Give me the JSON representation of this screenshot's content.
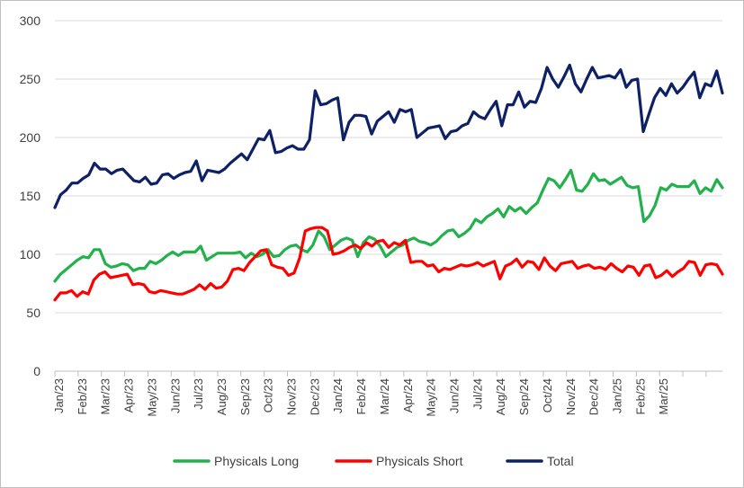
{
  "chart_data": {
    "type": "line",
    "title": "",
    "xlabel": "",
    "ylabel": "",
    "ylim": [
      0,
      300
    ],
    "yticks": [
      0,
      50,
      100,
      150,
      200,
      250,
      300
    ],
    "grid": "horizontal",
    "legend_position": "bottom",
    "month_labels": [
      "Jan/23",
      "Feb/23",
      "Mar/23",
      "Apr/23",
      "May/23",
      "Jun/23",
      "Jul/23",
      "Aug/23",
      "Sep/23",
      "Oct/23",
      "Nov/23",
      "Dec/23",
      "Jan/24",
      "Feb/24",
      "Mar/24",
      "Apr/24",
      "May/24",
      "Jun/24",
      "Jul/24",
      "Aug/24",
      "Sep/24",
      "Oct/24",
      "Nov/24",
      "Dec/24",
      "Jan/25",
      "Feb/25",
      "Mar/25"
    ],
    "series": [
      {
        "name": "Physicals Long",
        "color": "#22b14c",
        "values": [
          77,
          83,
          87,
          91,
          95,
          98,
          97,
          104,
          104,
          92,
          89,
          90,
          92,
          91,
          86,
          88,
          88,
          94,
          92,
          95,
          99,
          102,
          99,
          102,
          102,
          102,
          107,
          95,
          98,
          101,
          101,
          101,
          101,
          102,
          97,
          101,
          98,
          100,
          104,
          98,
          99,
          104,
          107,
          108,
          104,
          102,
          108,
          120,
          115,
          104,
          108,
          112,
          114,
          112,
          98,
          110,
          115,
          113,
          107,
          98,
          102,
          106,
          108,
          112,
          114,
          111,
          110,
          108,
          111,
          116,
          120,
          121,
          115,
          118,
          122,
          130,
          127,
          132,
          135,
          139,
          132,
          141,
          137,
          140,
          135,
          140,
          144,
          155,
          165,
          163,
          157,
          164,
          172,
          155,
          154,
          160,
          169,
          163,
          164,
          160,
          163,
          166,
          159,
          157,
          158,
          128,
          133,
          142,
          157,
          155,
          160,
          158,
          158,
          158,
          163,
          152,
          157,
          154,
          164,
          157
        ]
      },
      {
        "name": "Physicals Short",
        "color": "#ff0000",
        "values": [
          61,
          67,
          67,
          69,
          64,
          68,
          66,
          78,
          83,
          85,
          80,
          81,
          82,
          83,
          74,
          75,
          74,
          68,
          67,
          69,
          68,
          67,
          66,
          66,
          68,
          70,
          74,
          70,
          75,
          71,
          72,
          77,
          87,
          88,
          86,
          93,
          98,
          103,
          104,
          91,
          89,
          88,
          82,
          84,
          97,
          120,
          122,
          123,
          123,
          120,
          100,
          101,
          103,
          106,
          108,
          105,
          110,
          107,
          111,
          112,
          106,
          110,
          108,
          112,
          93,
          94,
          94,
          90,
          91,
          85,
          88,
          87,
          89,
          91,
          90,
          91,
          93,
          90,
          92,
          94,
          79,
          90,
          92,
          96,
          89,
          94,
          93,
          87,
          97,
          90,
          86,
          92,
          93,
          94,
          88,
          90,
          91,
          88,
          89,
          87,
          92,
          88,
          85,
          90,
          89,
          82,
          90,
          91,
          80,
          82,
          86,
          81,
          85,
          88,
          94,
          93,
          82,
          91,
          92,
          91,
          83
        ]
      },
      {
        "name": "Total",
        "color": "#0d2164",
        "values": [
          140,
          151,
          155,
          161,
          161,
          165,
          168,
          178,
          173,
          173,
          169,
          172,
          173,
          168,
          163,
          162,
          166,
          160,
          161,
          168,
          169,
          165,
          168,
          170,
          171,
          180,
          163,
          172,
          171,
          170,
          173,
          178,
          182,
          186,
          181,
          190,
          199,
          198,
          206,
          187,
          188,
          191,
          193,
          190,
          190,
          198,
          240,
          228,
          229,
          232,
          234,
          198,
          213,
          219,
          219,
          218,
          203,
          214,
          218,
          222,
          213,
          224,
          222,
          224,
          200,
          204,
          208,
          209,
          210,
          199,
          205,
          206,
          210,
          212,
          222,
          218,
          216,
          224,
          231,
          210,
          228,
          228,
          239,
          226,
          231,
          230,
          242,
          260,
          250,
          243,
          252,
          262,
          246,
          239,
          250,
          260,
          251,
          252,
          253,
          251,
          258,
          243,
          249,
          250,
          205,
          220,
          234,
          242,
          236,
          246,
          238,
          243,
          250,
          256,
          234,
          246,
          244,
          257,
          238
        ]
      }
    ]
  },
  "legend": {
    "items": [
      {
        "label": "Physicals Long",
        "color": "#22b14c"
      },
      {
        "label": "Physicals Short",
        "color": "#ff0000"
      },
      {
        "label": "Total",
        "color": "#0d2164"
      }
    ]
  }
}
